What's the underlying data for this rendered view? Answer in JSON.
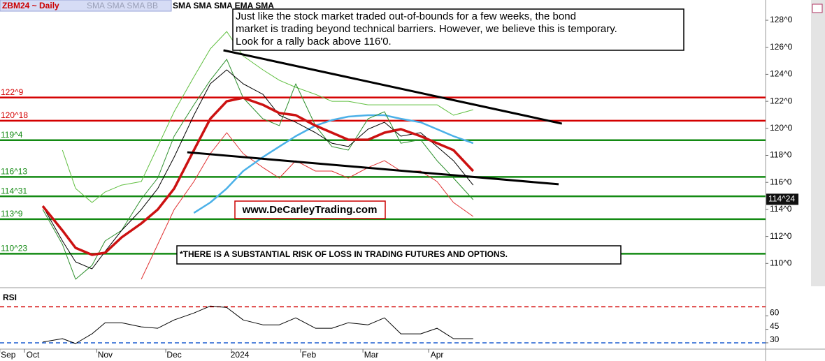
{
  "chart_data": [
    {
      "type": "line",
      "title": "ZBM24 ~ Daily",
      "indicator_labels": [
        "SMA SMA SMA BB",
        "SMA SMA SMA EMA SMA"
      ],
      "x": [
        13,
        19,
        23,
        28,
        32,
        37,
        43,
        48,
        53,
        59,
        64,
        69,
        74,
        80,
        85,
        90,
        96,
        101,
        106,
        112,
        117,
        122,
        128,
        133,
        138,
        144
      ],
      "xlim": [
        0,
        234
      ],
      "xticks": [
        {
          "value": 2.5,
          "label": "Sep"
        },
        {
          "value": 10,
          "label": "Oct"
        },
        {
          "value": 32,
          "label": "Nov"
        },
        {
          "value": 53,
          "label": "Dec"
        },
        {
          "value": 73,
          "label": "2024"
        },
        {
          "value": 94,
          "label": "Feb"
        },
        {
          "value": 113,
          "label": "Mar"
        },
        {
          "value": 133,
          "label": "Apr"
        }
      ],
      "ylim": [
        108.31,
        129.5
      ],
      "yticks": [
        {
          "value": 110,
          "label": "110^0"
        },
        {
          "value": 112,
          "label": "112^0"
        },
        {
          "value": 114,
          "label": "114^0"
        },
        {
          "value": 116,
          "label": "116^0"
        },
        {
          "value": 118,
          "label": "118^0"
        },
        {
          "value": 120,
          "label": "120^0"
        },
        {
          "value": 122,
          "label": "122^0"
        },
        {
          "value": 124,
          "label": "124^0"
        },
        {
          "value": 126,
          "label": "126^0"
        },
        {
          "value": 128,
          "label": "128^0"
        }
      ],
      "levels": [
        {
          "value": 122.28125,
          "label": "122^9",
          "color": "#d40000"
        },
        {
          "value": 120.5625,
          "label": "120^18",
          "color": "#d40000"
        },
        {
          "value": 119.125,
          "label": "119^4",
          "color": "#138a13"
        },
        {
          "value": 116.40625,
          "label": "116^13",
          "color": "#138a13"
        },
        {
          "value": 114.96875,
          "label": "114^31",
          "color": "#138a13"
        },
        {
          "value": 113.28125,
          "label": "113^9",
          "color": "#138a13"
        },
        {
          "value": 110.71875,
          "label": "110^23",
          "color": "#138a13"
        }
      ],
      "last_price": {
        "value": 114.75,
        "label": "114^24"
      },
      "series": [
        {
          "color": "#5fbf3f",
          "width": 1,
          "values": [
            null,
            118.39,
            115.55,
            114.51,
            115.29,
            115.8,
            116.06,
            118.65,
            121.23,
            123.81,
            125.88,
            127.17,
            125.36,
            124.33,
            123.56,
            123.04,
            122.52,
            122.0,
            122.0,
            121.74,
            121.74,
            121.74,
            121.74,
            121.74,
            120.97,
            121.38
          ]
        },
        {
          "color": "#e03030",
          "width": 1,
          "values": [
            null,
            null,
            null,
            null,
            null,
            null,
            108.83,
            111.41,
            113.99,
            116.06,
            118.13,
            119.68,
            118.13,
            117.1,
            116.32,
            117.61,
            116.84,
            116.84,
            116.32,
            117.1,
            117.61,
            116.84,
            116.84,
            116.06,
            114.51,
            113.48
          ]
        },
        {
          "color": "#4ab0e8",
          "width": 2.5,
          "values": [
            null,
            null,
            null,
            null,
            null,
            null,
            null,
            null,
            null,
            113.74,
            114.51,
            115.55,
            116.84,
            117.87,
            118.65,
            119.42,
            120.2,
            120.61,
            120.87,
            120.97,
            120.97,
            120.71,
            120.45,
            119.94,
            119.42,
            118.9
          ]
        },
        {
          "color": "#2c8f2c",
          "width": 1,
          "values": [
            114.0,
            111.41,
            108.83,
            109.86,
            111.67,
            112.45,
            114.77,
            116.32,
            119.42,
            121.74,
            123.56,
            125.11,
            122.26,
            120.71,
            120.2,
            123.3,
            120.2,
            118.65,
            118.39,
            120.71,
            121.23,
            118.9,
            119.16,
            117.61,
            116.32,
            114.72
          ]
        },
        {
          "color": "#000000",
          "width": 1,
          "values": [
            114.25,
            111.67,
            110.12,
            109.6,
            110.89,
            112.44,
            113.99,
            115.54,
            117.87,
            120.97,
            123.3,
            124.33,
            123.3,
            122.52,
            120.97,
            120.45,
            119.68,
            118.9,
            118.65,
            119.94,
            120.45,
            119.42,
            119.68,
            118.65,
            117.61,
            115.8
          ]
        },
        {
          "color": "#cc1111",
          "width": 3.5,
          "values": [
            114.25,
            112.44,
            111.15,
            110.64,
            110.79,
            111.93,
            112.96,
            113.99,
            115.54,
            118.38,
            120.71,
            122.0,
            122.26,
            121.74,
            121.13,
            120.97,
            120.2,
            119.68,
            119.16,
            119.16,
            119.68,
            119.94,
            119.42,
            118.9,
            118.39,
            116.84
          ]
        }
      ],
      "trendlines": [
        {
          "x": [
            68,
            171
          ],
          "y": [
            125.78,
            120.35
          ]
        },
        {
          "x": [
            57,
            170
          ],
          "y": [
            118.23,
            115.86
          ]
        }
      ],
      "annotation": [
        "Just like the stock market traded out-of-bounds for a few weeks, the bond",
        " market is trading beyond technical barriers. However, we believe this is temporary.",
        "Look for a rally back above 116'0."
      ],
      "website": "www.DeCarleyTrading.com",
      "disclaimer": "*THERE IS A SUBSTANTIAL RISK OF LOSS IN TRADING FUTURES AND OPTIONS."
    },
    {
      "type": "line",
      "title": "RSI",
      "x": [
        13,
        19,
        23,
        28,
        32,
        37,
        43,
        48,
        53,
        59,
        64,
        69,
        74,
        80,
        85,
        90,
        96,
        101,
        106,
        112,
        117,
        122,
        128,
        133,
        138,
        144
      ],
      "xlim": [
        0,
        234
      ],
      "ylim": [
        23,
        85
      ],
      "yticks": [
        30,
        45,
        60
      ],
      "levels": [
        {
          "value": 70,
          "color": "#d40000"
        },
        {
          "value": 30,
          "color": "#1f5fd0"
        }
      ],
      "series": [
        {
          "color": "#000000",
          "width": 1,
          "values": [
            30.8,
            34.6,
            29.2,
            40,
            52.3,
            52.3,
            47.7,
            46.2,
            55.4,
            63.1,
            70.8,
            69.2,
            55.4,
            50,
            50,
            57.7,
            46.2,
            46.2,
            52.3,
            50,
            57.7,
            40,
            40,
            46.2,
            34.6,
            34.6
          ]
        }
      ]
    }
  ]
}
